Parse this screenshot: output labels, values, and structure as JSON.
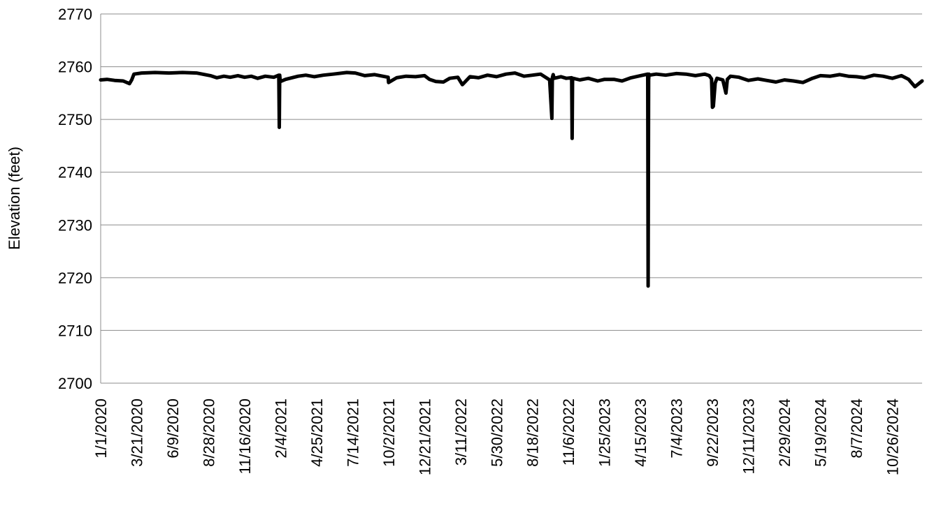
{
  "chart_data": {
    "type": "line",
    "title": "",
    "xlabel": "",
    "ylabel": "Elevation (feet)",
    "ylim": [
      2700,
      2770
    ],
    "y_ticks": [
      2700,
      2710,
      2720,
      2730,
      2740,
      2750,
      2760,
      2770
    ],
    "y_tick_labels": [
      "2700",
      "2710",
      "2720",
      "2730",
      "2740",
      "2750",
      "2760",
      "2770"
    ],
    "xlim": [
      "2020-01-01",
      "2024-12-31"
    ],
    "x_ticks": [
      "2020-01-01",
      "2020-03-21",
      "2020-06-09",
      "2020-08-28",
      "2020-11-16",
      "2021-02-04",
      "2021-04-25",
      "2021-07-14",
      "2021-10-02",
      "2021-12-21",
      "2022-03-11",
      "2022-05-30",
      "2022-08-18",
      "2022-11-06",
      "2023-01-25",
      "2023-04-15",
      "2023-07-04",
      "2023-09-22",
      "2023-12-11",
      "2024-02-29",
      "2024-05-19",
      "2024-08-07",
      "2024-10-26"
    ],
    "x_tick_labels": [
      "1/1/2020",
      "3/21/2020",
      "6/9/2020",
      "8/28/2020",
      "11/16/2020",
      "2/4/2021",
      "4/25/2021",
      "7/14/2021",
      "10/2/2021",
      "12/21/2021",
      "3/11/2022",
      "5/30/2022",
      "8/18/2022",
      "11/6/2022",
      "1/25/2023",
      "4/15/2023",
      "7/4/2023",
      "9/22/2023",
      "12/11/2023",
      "2/29/2024",
      "5/19/2024",
      "8/7/2024",
      "10/26/2024"
    ],
    "grid": {
      "horizontal": true,
      "vertical": false
    },
    "legend": "none",
    "line_color": "#000000",
    "series": [
      {
        "x": [
          "2020-01-01",
          "2020-01-15",
          "2020-02-01",
          "2020-02-20",
          "2020-03-05",
          "2020-03-10",
          "2020-03-15",
          "2020-04-01",
          "2020-05-01",
          "2020-06-01",
          "2020-07-01",
          "2020-08-01",
          "2020-09-01",
          "2020-09-15",
          "2020-10-01",
          "2020-10-15",
          "2020-11-01",
          "2020-11-16",
          "2020-12-01",
          "2020-12-15",
          "2021-01-01",
          "2021-01-20",
          "2021-01-31",
          "2021-02-01",
          "2021-02-02",
          "2021-02-03",
          "2021-02-04",
          "2021-02-15",
          "2021-03-01",
          "2021-03-15",
          "2021-04-01",
          "2021-04-20",
          "2021-05-10",
          "2021-06-01",
          "2021-07-01",
          "2021-07-20",
          "2021-08-10",
          "2021-09-01",
          "2021-10-01",
          "2021-10-02",
          "2021-10-20",
          "2021-11-10",
          "2021-12-01",
          "2021-12-21",
          "2022-01-01",
          "2022-01-15",
          "2022-02-01",
          "2022-02-15",
          "2022-03-05",
          "2022-03-15",
          "2022-04-01",
          "2022-04-20",
          "2022-05-10",
          "2022-05-30",
          "2022-06-20",
          "2022-07-10",
          "2022-07-30",
          "2022-08-18",
          "2022-09-05",
          "2022-09-25",
          "2022-09-30",
          "2022-10-01",
          "2022-10-03",
          "2022-10-05",
          "2022-10-20",
          "2022-11-01",
          "2022-11-13",
          "2022-11-14",
          "2022-11-15",
          "2022-11-16",
          "2022-12-01",
          "2022-12-20",
          "2023-01-10",
          "2023-01-25",
          "2023-02-15",
          "2023-03-05",
          "2023-03-25",
          "2023-04-15",
          "2023-05-01",
          "2023-05-02",
          "2023-05-03",
          "2023-05-04",
          "2023-05-05",
          "2023-05-20",
          "2023-06-10",
          "2023-07-04",
          "2023-07-25",
          "2023-08-15",
          "2023-09-05",
          "2023-09-15",
          "2023-09-20",
          "2023-09-22",
          "2023-09-24",
          "2023-09-28",
          "2023-10-02",
          "2023-10-15",
          "2023-10-22",
          "2023-10-25",
          "2023-11-01",
          "2023-11-20",
          "2023-12-11",
          "2024-01-01",
          "2024-01-20",
          "2024-02-10",
          "2024-02-29",
          "2024-03-20",
          "2024-04-10",
          "2024-05-01",
          "2024-05-19",
          "2024-06-10",
          "2024-07-01",
          "2024-07-20",
          "2024-08-07",
          "2024-08-25",
          "2024-09-15",
          "2024-10-05",
          "2024-10-26",
          "2024-11-15",
          "2024-12-01",
          "2024-12-15",
          "2024-12-31"
        ],
        "y": [
          2757.5,
          2757.6,
          2757.4,
          2757.3,
          2756.8,
          2757.5,
          2758.6,
          2758.8,
          2758.9,
          2758.8,
          2758.9,
          2758.8,
          2758.3,
          2757.9,
          2758.2,
          2758.0,
          2758.3,
          2758.0,
          2758.2,
          2757.8,
          2758.2,
          2758.0,
          2758.4,
          2748.5,
          2758.4,
          2757.5,
          2757.2,
          2757.6,
          2757.9,
          2758.2,
          2758.4,
          2758.1,
          2758.4,
          2758.6,
          2758.9,
          2758.8,
          2758.3,
          2758.5,
          2758.0,
          2757.0,
          2757.9,
          2758.2,
          2758.1,
          2758.3,
          2757.6,
          2757.2,
          2757.1,
          2757.8,
          2758.0,
          2756.6,
          2758.1,
          2757.9,
          2758.4,
          2758.1,
          2758.6,
          2758.8,
          2758.2,
          2758.4,
          2758.6,
          2757.5,
          2750.2,
          2757.9,
          2758.5,
          2757.8,
          2758.1,
          2757.8,
          2757.9,
          2746.4,
          2757.5,
          2757.8,
          2757.5,
          2757.8,
          2757.3,
          2757.6,
          2757.6,
          2757.3,
          2757.9,
          2758.3,
          2758.6,
          2718.4,
          2757.5,
          2758.6,
          2758.4,
          2758.6,
          2758.4,
          2758.7,
          2758.6,
          2758.3,
          2758.6,
          2758.3,
          2757.7,
          2752.3,
          2752.5,
          2756.9,
          2757.8,
          2757.5,
          2755.0,
          2757.6,
          2758.2,
          2758.0,
          2757.4,
          2757.7,
          2757.4,
          2757.1,
          2757.5,
          2757.3,
          2757.0,
          2757.8,
          2758.3,
          2758.2,
          2758.5,
          2758.2,
          2758.1,
          2757.9,
          2758.4,
          2758.2,
          2757.8,
          2758.3,
          2757.6,
          2756.2,
          2757.3
        ]
      }
    ]
  }
}
